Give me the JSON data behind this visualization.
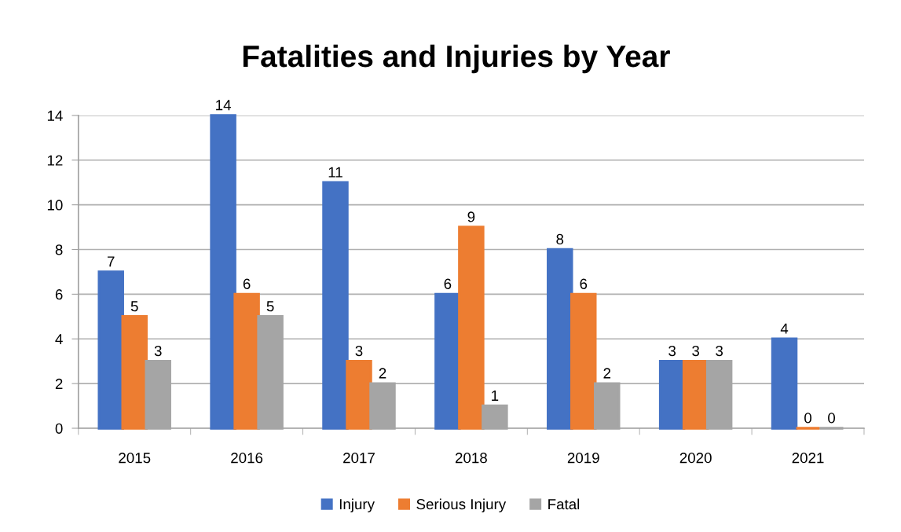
{
  "chart_data": {
    "type": "bar",
    "title": "Fatalities and Injuries by Year",
    "categories": [
      "2015",
      "2016",
      "2017",
      "2018",
      "2019",
      "2020",
      "2021"
    ],
    "series": [
      {
        "name": "Injury",
        "color": "#4472c4",
        "values": [
          7,
          14,
          11,
          6,
          8,
          3,
          4
        ]
      },
      {
        "name": "Serious Injury",
        "color": "#ed7d31",
        "values": [
          5,
          6,
          3,
          9,
          6,
          3,
          0
        ]
      },
      {
        "name": "Fatal",
        "color": "#a5a5a5",
        "values": [
          3,
          5,
          2,
          1,
          2,
          3,
          0
        ]
      }
    ],
    "ylim": [
      0,
      14
    ],
    "yticks": [
      0,
      2,
      4,
      6,
      8,
      10,
      12,
      14
    ],
    "grid": "y",
    "legend": "bottom",
    "data_labels": true
  }
}
